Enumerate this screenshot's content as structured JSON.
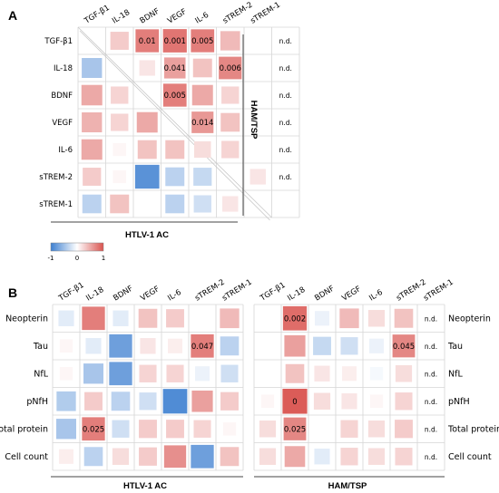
{
  "panels": [
    {
      "letter": "A"
    },
    {
      "letter": "B"
    }
  ],
  "colors": {
    "positive": "#d9534f",
    "negative": "#3d7fd0",
    "grid": "#d6d6d6",
    "axis": "#444444"
  },
  "chart_data": [
    {
      "type": "heatmap",
      "title": "",
      "markers": [
        "TGF-β1",
        "IL-18",
        "BDNF",
        "VEGF",
        "IL-6",
        "sTREM-2",
        "sTREM-1"
      ],
      "upper_group_label": "HAM/TSP",
      "lower_group_label": "HTLV-1 AC",
      "nd_label": "n.d.",
      "nd_column": 7,
      "upper_cells": [
        {
          "row": 0,
          "col": 1,
          "value": 0.3
        },
        {
          "row": 0,
          "col": 2,
          "value": 0.75,
          "label": "0.01"
        },
        {
          "row": 0,
          "col": 3,
          "value": 0.8,
          "label": "0.001"
        },
        {
          "row": 0,
          "col": 4,
          "value": 0.75,
          "label": "0.005"
        },
        {
          "row": 0,
          "col": 5,
          "value": 0.4
        },
        {
          "row": 1,
          "col": 2,
          "value": 0.15
        },
        {
          "row": 1,
          "col": 3,
          "value": 0.55,
          "label": "0.041"
        },
        {
          "row": 1,
          "col": 4,
          "value": 0.35
        },
        {
          "row": 1,
          "col": 5,
          "value": 0.7,
          "label": "0.006"
        },
        {
          "row": 2,
          "col": 3,
          "value": 0.75,
          "label": "0.005"
        },
        {
          "row": 2,
          "col": 4,
          "value": 0.5
        },
        {
          "row": 2,
          "col": 5,
          "value": 0.25
        },
        {
          "row": 3,
          "col": 4,
          "value": 0.6,
          "label": "0.014"
        },
        {
          "row": 3,
          "col": 5,
          "value": 0.35
        },
        {
          "row": 4,
          "col": 5,
          "value": 0.25
        },
        {
          "row": 5,
          "col": 6,
          "value": 0.15
        }
      ],
      "lower_cells": [
        {
          "row": 1,
          "col": 0,
          "value": -0.45
        },
        {
          "row": 2,
          "col": 0,
          "value": 0.5
        },
        {
          "row": 2,
          "col": 1,
          "value": 0.25
        },
        {
          "row": 3,
          "col": 0,
          "value": 0.45
        },
        {
          "row": 3,
          "col": 1,
          "value": 0.25
        },
        {
          "row": 3,
          "col": 2,
          "value": 0.5
        },
        {
          "row": 4,
          "col": 0,
          "value": 0.5
        },
        {
          "row": 4,
          "col": 1,
          "value": 0.05
        },
        {
          "row": 4,
          "col": 2,
          "value": 0.35
        },
        {
          "row": 4,
          "col": 3,
          "value": 0.35
        },
        {
          "row": 4,
          "col": 4,
          "value": 0.2
        },
        {
          "row": 5,
          "col": 0,
          "value": 0.3
        },
        {
          "row": 5,
          "col": 1,
          "value": 0.05
        },
        {
          "row": 5,
          "col": 2,
          "value": -0.85
        },
        {
          "row": 5,
          "col": 3,
          "value": -0.35
        },
        {
          "row": 5,
          "col": 4,
          "value": -0.3
        },
        {
          "row": 6,
          "col": 0,
          "value": -0.35
        },
        {
          "row": 6,
          "col": 1,
          "value": 0.35
        },
        {
          "row": 6,
          "col": 3,
          "value": -0.35
        },
        {
          "row": 6,
          "col": 4,
          "value": -0.25
        },
        {
          "row": 6,
          "col": 5,
          "value": 0.15
        }
      ]
    },
    {
      "type": "heatmap",
      "title": "",
      "legend": {
        "min": "-1",
        "mid": "0",
        "max": "1"
      },
      "columns": [
        "TGF-β1",
        "IL-18",
        "BDNF",
        "VEGF",
        "IL-6",
        "sTREM-2",
        "sTREM-1"
      ],
      "rows": [
        "Neopterin",
        "Tau",
        "NfL",
        "pNfH",
        "Total protein",
        "Cell count"
      ],
      "nd_label": "n.d.",
      "groups": [
        {
          "label": "HTLV-1 AC",
          "cells": [
            {
              "row": 0,
              "col": 0,
              "value": -0.15
            },
            {
              "row": 0,
              "col": 1,
              "value": 0.75
            },
            {
              "row": 0,
              "col": 2,
              "value": -0.15
            },
            {
              "row": 0,
              "col": 3,
              "value": 0.35
            },
            {
              "row": 0,
              "col": 4,
              "value": 0.3
            },
            {
              "row": 0,
              "col": 6,
              "value": 0.4
            },
            {
              "row": 1,
              "col": 0,
              "value": 0.05
            },
            {
              "row": 1,
              "col": 1,
              "value": -0.15
            },
            {
              "row": 1,
              "col": 2,
              "value": -0.75
            },
            {
              "row": 1,
              "col": 3,
              "value": 0.15
            },
            {
              "row": 1,
              "col": 4,
              "value": 0.1
            },
            {
              "row": 1,
              "col": 5,
              "value": 0.75,
              "label": "0.047"
            },
            {
              "row": 1,
              "col": 6,
              "value": -0.35
            },
            {
              "row": 2,
              "col": 0,
              "value": 0.05
            },
            {
              "row": 2,
              "col": 1,
              "value": -0.45
            },
            {
              "row": 2,
              "col": 2,
              "value": -0.75
            },
            {
              "row": 2,
              "col": 3,
              "value": 0.25
            },
            {
              "row": 2,
              "col": 4,
              "value": 0.25
            },
            {
              "row": 2,
              "col": 5,
              "value": -0.1
            },
            {
              "row": 2,
              "col": 6,
              "value": -0.25
            },
            {
              "row": 3,
              "col": 0,
              "value": -0.4
            },
            {
              "row": 3,
              "col": 1,
              "value": 0.3
            },
            {
              "row": 3,
              "col": 2,
              "value": -0.35
            },
            {
              "row": 3,
              "col": 3,
              "value": -0.25
            },
            {
              "row": 3,
              "col": 4,
              "value": -0.9
            },
            {
              "row": 3,
              "col": 5,
              "value": 0.55
            },
            {
              "row": 3,
              "col": 6,
              "value": 0.3
            },
            {
              "row": 4,
              "col": 0,
              "value": -0.45
            },
            {
              "row": 4,
              "col": 1,
              "value": 0.75,
              "label": "0.025"
            },
            {
              "row": 4,
              "col": 2,
              "value": -0.25
            },
            {
              "row": 4,
              "col": 3,
              "value": 0.3
            },
            {
              "row": 4,
              "col": 4,
              "value": 0.3
            },
            {
              "row": 4,
              "col": 5,
              "value": 0.25
            },
            {
              "row": 4,
              "col": 6,
              "value": 0.05
            },
            {
              "row": 5,
              "col": 0,
              "value": 0.1
            },
            {
              "row": 5,
              "col": 1,
              "value": -0.35
            },
            {
              "row": 5,
              "col": 2,
              "value": 0.2
            },
            {
              "row": 5,
              "col": 3,
              "value": 0.3
            },
            {
              "row": 5,
              "col": 4,
              "value": 0.65
            },
            {
              "row": 5,
              "col": 5,
              "value": -0.75
            },
            {
              "row": 5,
              "col": 6,
              "value": 0.35
            }
          ]
        },
        {
          "label": "HAM/TSP",
          "nd_column": 6,
          "cells": [
            {
              "row": 0,
              "col": 1,
              "value": 0.85,
              "label": "0.002"
            },
            {
              "row": 0,
              "col": 2,
              "value": -0.1
            },
            {
              "row": 0,
              "col": 3,
              "value": 0.4
            },
            {
              "row": 0,
              "col": 4,
              "value": 0.2
            },
            {
              "row": 0,
              "col": 5,
              "value": 0.35
            },
            {
              "row": 1,
              "col": 1,
              "value": 0.55
            },
            {
              "row": 1,
              "col": 2,
              "value": -0.3
            },
            {
              "row": 1,
              "col": 3,
              "value": -0.25
            },
            {
              "row": 1,
              "col": 4,
              "value": -0.1
            },
            {
              "row": 1,
              "col": 5,
              "value": 0.7,
              "label": "0.045"
            },
            {
              "row": 2,
              "col": 1,
              "value": 0.35
            },
            {
              "row": 2,
              "col": 2,
              "value": 0.15
            },
            {
              "row": 2,
              "col": 3,
              "value": 0.1
            },
            {
              "row": 2,
              "col": 4,
              "value": -0.05
            },
            {
              "row": 2,
              "col": 5,
              "value": 0.2
            },
            {
              "row": 3,
              "col": 0,
              "value": 0.05
            },
            {
              "row": 3,
              "col": 1,
              "value": 0.95,
              "label": "0"
            },
            {
              "row": 3,
              "col": 2,
              "value": 0.2
            },
            {
              "row": 3,
              "col": 3,
              "value": 0.15
            },
            {
              "row": 3,
              "col": 4,
              "value": 0.05
            },
            {
              "row": 3,
              "col": 5,
              "value": 0.25
            },
            {
              "row": 4,
              "col": 0,
              "value": 0.2
            },
            {
              "row": 4,
              "col": 1,
              "value": 0.7,
              "label": "0.025"
            },
            {
              "row": 4,
              "col": 3,
              "value": 0.25
            },
            {
              "row": 4,
              "col": 4,
              "value": 0.2
            },
            {
              "row": 4,
              "col": 5,
              "value": 0.3
            },
            {
              "row": 5,
              "col": 0,
              "value": 0.2
            },
            {
              "row": 5,
              "col": 1,
              "value": 0.5
            },
            {
              "row": 5,
              "col": 2,
              "value": -0.15
            },
            {
              "row": 5,
              "col": 3,
              "value": 0.25
            },
            {
              "row": 5,
              "col": 4,
              "value": 0.2
            },
            {
              "row": 5,
              "col": 5,
              "value": 0.25
            }
          ]
        }
      ]
    }
  ]
}
